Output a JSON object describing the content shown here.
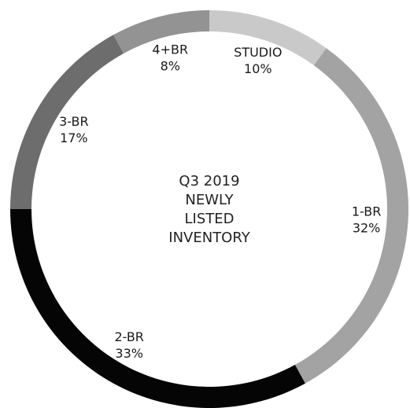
{
  "chart_data": {
    "type": "pie",
    "variant": "donut",
    "center_text": [
      "Q3 2019",
      "NEWLY",
      "LISTED",
      "INVENTORY"
    ],
    "start": "top",
    "direction": "clockwise",
    "slices": [
      {
        "label": "STUDIO",
        "pct_text": "10%",
        "value": 10,
        "color": "#c9c9c9"
      },
      {
        "label": "1-BR",
        "pct_text": "32%",
        "value": 32,
        "color": "#a3a3a3"
      },
      {
        "label": "2-BR",
        "pct_text": "33%",
        "value": 33,
        "color": "#050505"
      },
      {
        "label": "3-BR",
        "pct_text": "17%",
        "value": 17,
        "color": "#6d6d6d"
      },
      {
        "label": "4+BR",
        "pct_text": "8%",
        "value": 8,
        "color": "#939393"
      }
    ]
  }
}
